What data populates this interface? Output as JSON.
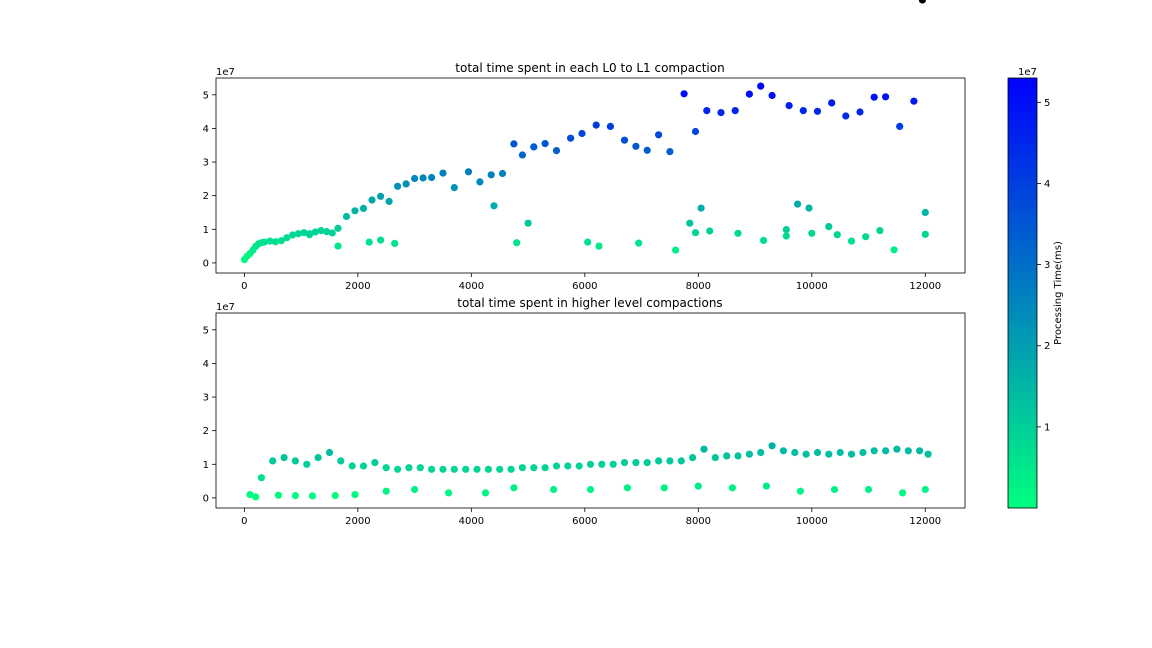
{
  "chart_data": [
    {
      "type": "scatter",
      "title": "total time spent in each L0 to L1 compaction",
      "xlabel": "",
      "ylabel": "",
      "xlim": [
        -500,
        12700
      ],
      "ylim": [
        -3000000,
        55000000
      ],
      "xticks": [
        0,
        2000,
        4000,
        6000,
        8000,
        10000,
        12000
      ],
      "xtick_labels": [
        "0",
        "2000",
        "4000",
        "6000",
        "8000",
        "10000",
        "12000"
      ],
      "yticks": [
        0,
        10000000,
        20000000,
        30000000,
        40000000,
        50000000
      ],
      "ytick_labels": [
        "0",
        "1",
        "2",
        "3",
        "4",
        "5"
      ],
      "y_offset_label": "1e7",
      "points_x": [
        0,
        50,
        100,
        150,
        200,
        250,
        300,
        350,
        450,
        550,
        650,
        750,
        850,
        950,
        1050,
        1150,
        1250,
        1350,
        1450,
        1550,
        1650,
        1800,
        1950,
        2100,
        2250,
        2400,
        2550,
        2700,
        2850,
        3000,
        3150,
        3300,
        3500,
        3700,
        3950,
        4150,
        4350,
        4550,
        4750,
        4900,
        5100,
        5300,
        5500,
        5750,
        5950,
        6200,
        6450,
        6700,
        6900,
        7100,
        7300,
        7500,
        7750,
        7950,
        8150,
        8400,
        8650,
        8900,
        9100,
        9300,
        9600,
        9850,
        10100,
        10350,
        10600,
        10850,
        11100,
        11300,
        11550,
        11800,
        12000,
        4400,
        4800,
        5000,
        7850,
        7950,
        8050,
        9550,
        9750,
        9950,
        10300,
        12000,
        1150,
        1650,
        2200,
        2400,
        2650,
        6050,
        6250,
        6950,
        7600,
        8200,
        8700,
        9150,
        9550,
        10000,
        10450,
        10700,
        10950,
        11200,
        11450,
        11950
      ],
      "points_y": [
        1000000,
        2000000,
        2800000,
        3800000,
        4900000,
        5700000,
        6000000,
        6200000,
        6500000,
        6300000,
        6600000,
        7500000,
        8300000,
        8700000,
        9000000,
        8400000,
        9200000,
        9600000,
        9300000,
        8900000,
        10300000,
        13800000,
        15500000,
        16200000,
        18700000,
        19800000,
        18300000,
        22800000,
        23500000,
        25100000,
        25300000,
        25400000,
        26700000,
        22400000,
        27100000,
        24100000,
        26200000,
        26600000,
        35400000,
        32100000,
        34500000,
        35500000,
        33400000,
        37100000,
        38500000,
        41000000,
        40600000,
        36500000,
        34700000,
        33500000,
        38100000,
        33100000,
        50300000,
        39100000,
        45300000,
        44700000,
        45300000,
        50200000,
        52600000,
        49800000,
        46800000,
        45300000,
        45100000,
        47600000,
        43700000,
        44900000,
        49300000,
        49400000,
        40600000,
        48100000,
        15000000,
        17000000,
        6000000,
        11800000,
        11800000,
        9000000,
        16300000,
        9900000,
        17500000,
        16300000,
        10800000,
        8500000,
        8700000,
        5000000,
        6200000,
        6800000,
        5800000,
        6200000,
        5000000,
        5900000,
        3800000,
        9500000,
        8800000,
        6700000,
        8000000,
        8800000,
        8400000,
        6500000,
        7800000,
        9600000,
        3900000
      ],
      "colorbar": {
        "label": "Processing Time(ms)",
        "min": 0,
        "max": 53000000,
        "ticks": [
          10000000,
          20000000,
          30000000,
          40000000,
          50000000
        ],
        "tick_labels": [
          "1",
          "2",
          "3",
          "4",
          "5"
        ],
        "offset_label": "1e7",
        "colormap_low": "#00ff80",
        "colormap_high": "#0000ff"
      }
    },
    {
      "type": "scatter",
      "title": "total time spent in higher level compactions",
      "xlabel": "",
      "ylabel": "",
      "xlim": [
        -500,
        12700
      ],
      "ylim": [
        -3000000,
        55000000
      ],
      "xticks": [
        0,
        2000,
        4000,
        6000,
        8000,
        10000,
        12000
      ],
      "xtick_labels": [
        "0",
        "2000",
        "4000",
        "6000",
        "8000",
        "10000",
        "12000"
      ],
      "yticks": [
        0,
        10000000,
        20000000,
        30000000,
        40000000,
        50000000
      ],
      "ytick_labels": [
        "0",
        "1",
        "2",
        "3",
        "4",
        "5"
      ],
      "y_offset_label": "1e7",
      "points_x": [
        100,
        300,
        500,
        700,
        900,
        1100,
        1300,
        1500,
        1700,
        1900,
        2100,
        2300,
        2500,
        2700,
        2900,
        3100,
        3300,
        3500,
        3700,
        3900,
        4100,
        4300,
        4500,
        4700,
        4900,
        5100,
        5300,
        5500,
        5700,
        5900,
        6100,
        6300,
        6500,
        6700,
        6900,
        7100,
        7300,
        7500,
        7700,
        7900,
        8100,
        8300,
        8500,
        8700,
        8900,
        9100,
        9300,
        9500,
        9700,
        9900,
        10100,
        10300,
        10500,
        10700,
        10900,
        11100,
        11300,
        11500,
        11700,
        11900,
        12050
      ],
      "points_y": [
        1000000,
        6000000,
        11000000,
        12000000,
        11000000,
        10000000,
        12000000,
        13500000,
        11000000,
        9500000,
        9500000,
        10500000,
        9000000,
        8500000,
        9000000,
        9000000,
        8500000,
        8500000,
        8500000,
        8500000,
        8500000,
        8500000,
        8500000,
        8500000,
        9000000,
        9000000,
        9000000,
        9500000,
        9500000,
        9500000,
        10000000,
        10000000,
        10000000,
        10500000,
        10500000,
        10500000,
        11000000,
        11000000,
        11000000,
        12000000,
        14500000,
        12000000,
        12500000,
        12500000,
        13000000,
        13500000,
        15500000,
        14000000,
        13500000,
        13000000,
        13500000,
        13000000,
        13500000,
        13000000,
        13500000,
        14000000,
        14000000,
        14500000,
        14000000,
        14000000,
        13000000
      ],
      "low_points_x": [
        200,
        600,
        900,
        1200,
        1600,
        1950,
        2500,
        3000,
        3600,
        4250,
        4750,
        5450,
        6100,
        6750,
        7400,
        8000,
        8600,
        9200,
        9800,
        10400,
        11000,
        11600,
        12000
      ],
      "low_points_y": [
        300000,
        800000,
        700000,
        600000,
        700000,
        1000000,
        2000000,
        2500000,
        1500000,
        1500000,
        3000000,
        2500000,
        2500000,
        3000000,
        3000000,
        3500000,
        3000000,
        3500000,
        2000000,
        2500000,
        2500000,
        1500000,
        2500000
      ]
    }
  ]
}
